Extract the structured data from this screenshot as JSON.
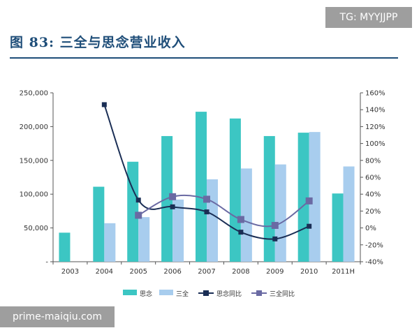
{
  "header": {
    "title": "图 83: 三全与思念营业收入"
  },
  "watermarks": {
    "tg": "TG: MYYJJPP",
    "site": "prime-maiqiu.com"
  },
  "colors": {
    "title": "#1f4e79",
    "bar_sinian": "#3cc6c3",
    "bar_sanquan": "#a8cdee",
    "line_sinian": "#1a2e55",
    "line_sanquan": "#6a6aa3"
  },
  "chart_data": {
    "type": "bar",
    "categories": [
      "2003",
      "2004",
      "2005",
      "2006",
      "2007",
      "2008",
      "2009",
      "2010",
      "2011H"
    ],
    "series": [
      {
        "name": "思念",
        "kind": "bar",
        "axis": "left",
        "values": [
          43000,
          111000,
          148000,
          186000,
          222000,
          212000,
          186000,
          191000,
          101000
        ]
      },
      {
        "name": "三全",
        "kind": "bar",
        "axis": "left",
        "values": [
          null,
          57000,
          66000,
          92000,
          122000,
          138000,
          144000,
          192000,
          141000
        ]
      },
      {
        "name": "思念同比",
        "kind": "line",
        "axis": "right",
        "values": [
          null,
          1.46,
          0.33,
          0.25,
          0.19,
          -0.05,
          -0.13,
          0.02,
          null
        ]
      },
      {
        "name": "三全同比",
        "kind": "line",
        "axis": "right",
        "values": [
          null,
          null,
          0.15,
          0.37,
          0.34,
          0.1,
          0.03,
          0.32,
          null
        ]
      }
    ],
    "left_axis": {
      "range": [
        0,
        250000
      ],
      "ticks": [
        "-",
        "50,000",
        "100,000",
        "150,000",
        "200,000",
        "250,000"
      ]
    },
    "right_axis": {
      "range": [
        -0.4,
        1.6
      ],
      "ticks": [
        "-40%",
        "-20%",
        "0%",
        "20%",
        "40%",
        "60%",
        "80%",
        "100%",
        "120%",
        "140%",
        "160%"
      ]
    },
    "grid": false,
    "legend": {
      "position": "bottom",
      "labels": [
        "思念",
        "三全",
        "思念同比",
        "三全同比"
      ]
    }
  }
}
